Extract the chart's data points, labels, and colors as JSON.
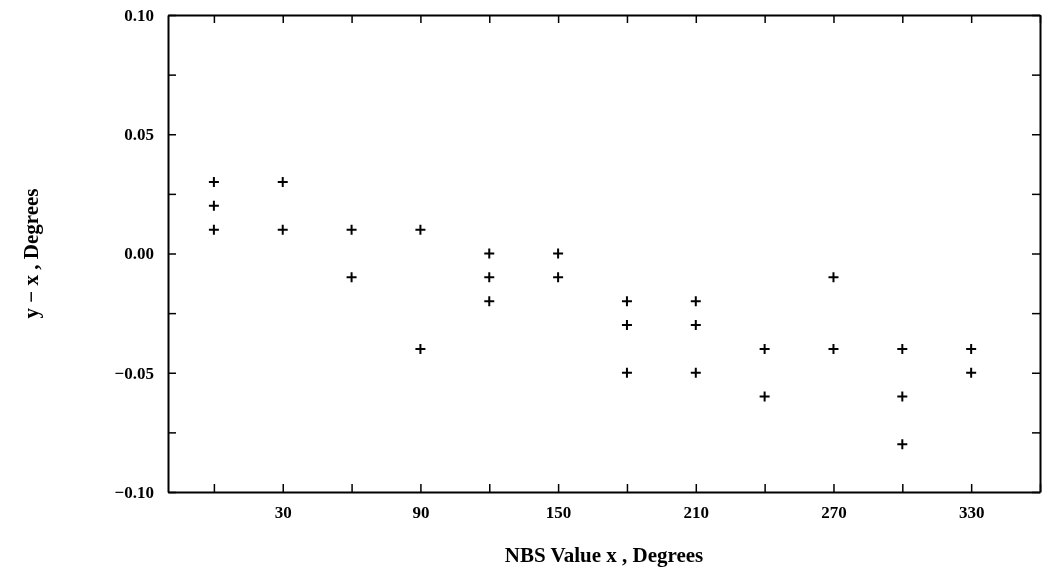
{
  "chart_data": {
    "type": "scatter",
    "xlabel": "NBS Value  x , Degrees",
    "ylabel": "y − x , Degrees",
    "x": [
      0,
      0,
      0,
      30,
      30,
      60,
      60,
      90,
      90,
      120,
      120,
      120,
      150,
      150,
      180,
      180,
      180,
      210,
      210,
      210,
      240,
      240,
      270,
      270,
      300,
      300,
      300,
      330,
      330
    ],
    "values": [
      0.03,
      0.02,
      0.01,
      0.03,
      0.01,
      0.01,
      -0.01,
      0.01,
      -0.04,
      0,
      -0.01,
      -0.02,
      0,
      -0.01,
      -0.02,
      -0.03,
      -0.05,
      -0.02,
      -0.03,
      -0.05,
      -0.04,
      -0.06,
      -0.01,
      -0.04,
      -0.04,
      -0.06,
      -0.08,
      -0.04,
      -0.05
    ],
    "color": "#000000",
    "marker": "cross",
    "xlim": [
      -20,
      360
    ],
    "xticks": [
      {
        "value": 0,
        "label": null
      },
      30,
      {
        "value": 60,
        "label": null
      },
      90,
      {
        "value": 120,
        "label": null
      },
      150,
      {
        "value": 180,
        "label": null
      },
      210,
      {
        "value": 240,
        "label": null
      },
      270,
      {
        "value": 300,
        "label": null
      },
      330,
      {
        "value": 360,
        "label": null
      }
    ],
    "ylim": [
      -0.1,
      0.1
    ],
    "yticks": [
      {
        "value": -0.1,
        "label": "−0.10"
      },
      {
        "value": -0.075,
        "label": null
      },
      {
        "value": -0.05,
        "label": "−0.05"
      },
      {
        "value": -0.025,
        "label": null
      },
      {
        "value": 0,
        "label": "0.00"
      },
      {
        "value": 0.025,
        "label": null
      },
      {
        "value": 0.05,
        "label": "0.05"
      },
      {
        "value": 0.075,
        "label": null
      },
      {
        "value": 0.1,
        "label": "0.10"
      }
    ]
  }
}
